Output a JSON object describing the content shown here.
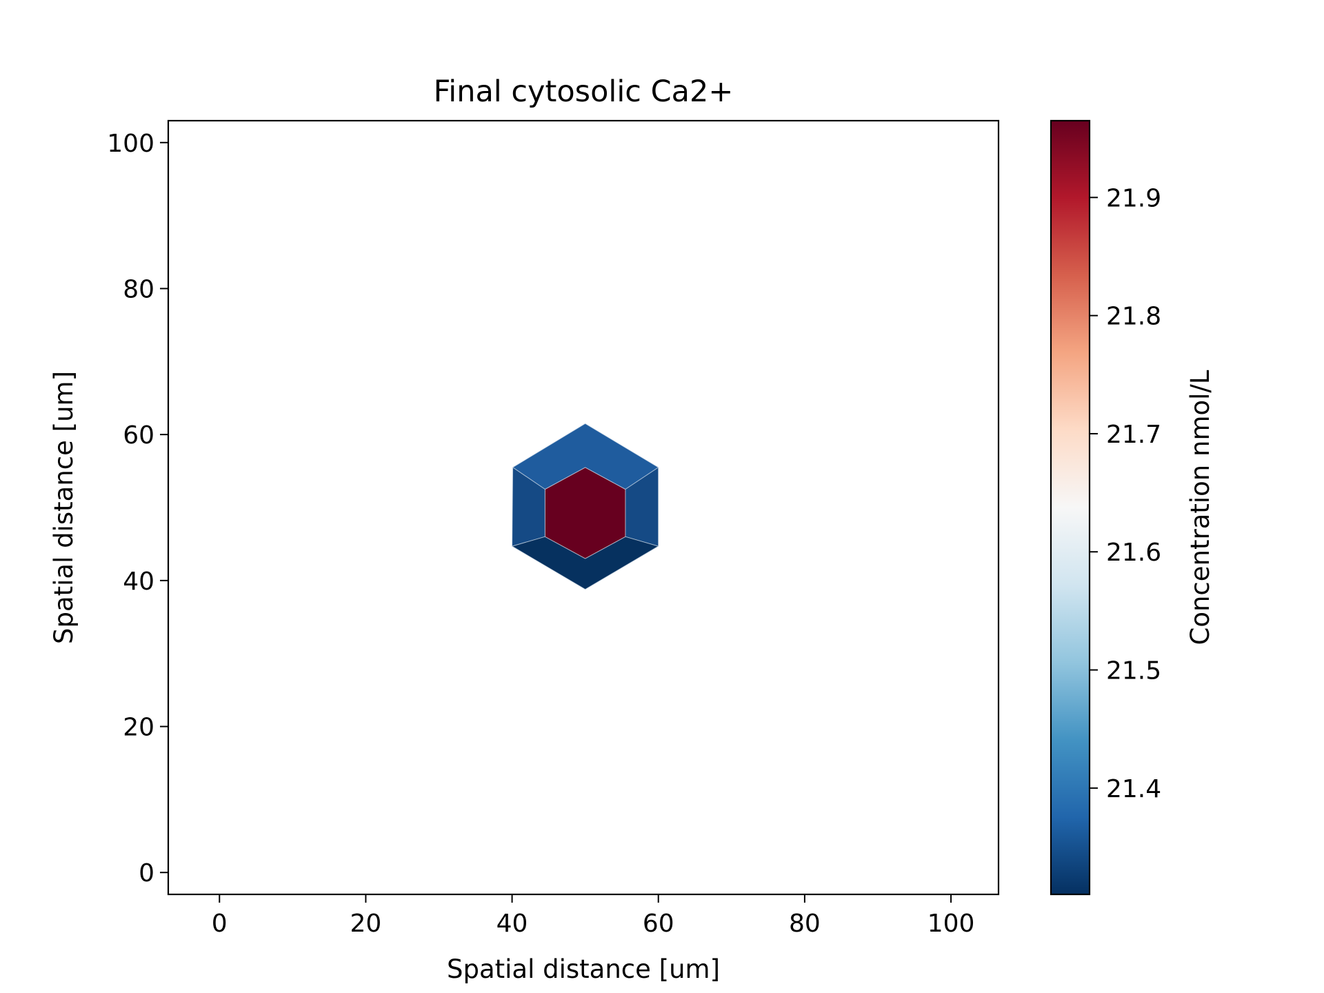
{
  "chart_data": {
    "type": "heatmap",
    "title": "Final cytosolic Ca2+",
    "xlabel": "Spatial distance [um]",
    "ylabel": "Spatial distance [um]",
    "xlim": [
      -7,
      106.5
    ],
    "ylim": [
      -3,
      103
    ],
    "xticks": [
      0,
      20,
      40,
      60,
      80,
      100
    ],
    "yticks": [
      0,
      20,
      40,
      60,
      80,
      100
    ],
    "grid": false,
    "colorbar": {
      "label": "Concentration nmol/L",
      "colormap": "RdBu_r",
      "range": [
        21.31,
        21.965
      ],
      "ticks": [
        21.4,
        21.5,
        21.6,
        21.7,
        21.8,
        21.9
      ],
      "colors": [
        "#053061",
        "#2166ac",
        "#4393c3",
        "#92c5de",
        "#d1e5f0",
        "#f7f7f7",
        "#fddbc7",
        "#f4a582",
        "#d6604d",
        "#b2182b",
        "#67001f"
      ]
    },
    "cells": [
      {
        "name": "center",
        "value": 21.965,
        "color": "#67001f",
        "points": [
          [
            50,
            55.5
          ],
          [
            55.5,
            52.5
          ],
          [
            55.5,
            46
          ],
          [
            50,
            43
          ],
          [
            44.5,
            46
          ],
          [
            44.5,
            52.5
          ]
        ]
      },
      {
        "name": "upper",
        "value": 21.36,
        "color": "#1f5c9e",
        "points": [
          [
            50,
            61.5
          ],
          [
            60,
            55.5
          ],
          [
            55.5,
            52.5
          ],
          [
            50,
            55.5
          ],
          [
            44.5,
            52.5
          ],
          [
            40.1,
            55.5
          ]
        ]
      },
      {
        "name": "sides",
        "value": 21.34,
        "color": "#154a85",
        "points": [
          [
            40.1,
            55.5
          ],
          [
            44.5,
            52.5
          ],
          [
            44.5,
            46
          ],
          [
            40,
            44.7
          ]
        ]
      },
      {
        "name": "sides-right",
        "value": 21.34,
        "color": "#154a85",
        "points": [
          [
            60,
            55.5
          ],
          [
            60,
            44.7
          ],
          [
            55.5,
            46
          ],
          [
            55.5,
            52.5
          ]
        ]
      },
      {
        "name": "lower",
        "value": 21.31,
        "color": "#06315f",
        "points": [
          [
            40,
            44.7
          ],
          [
            44.5,
            46
          ],
          [
            50,
            43
          ],
          [
            55.5,
            46
          ],
          [
            60,
            44.7
          ],
          [
            50,
            38.8
          ]
        ]
      }
    ]
  }
}
